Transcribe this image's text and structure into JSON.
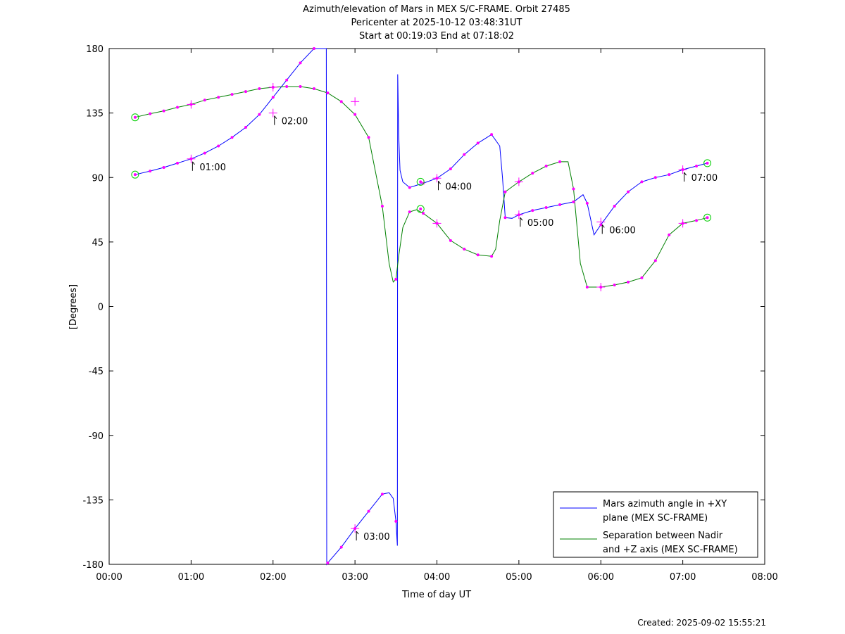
{
  "chart_data": {
    "type": "line",
    "title": [
      "Azimuth/elevation of Mars in MEX S/C-FRAME.  Orbit 27485",
      "Pericenter at 2025-10-12 03:48:31UT",
      "Start at 00:19:03 End at 07:18:02"
    ],
    "xlabel": "Time of day UT",
    "ylabel": "[Degrees]",
    "xlim": [
      0,
      480
    ],
    "ylim": [
      -180,
      180
    ],
    "x_ticks": [
      0,
      60,
      120,
      180,
      240,
      300,
      360,
      420,
      480
    ],
    "x_tick_labels": [
      "00:00",
      "01:00",
      "02:00",
      "03:00",
      "04:00",
      "05:00",
      "06:00",
      "07:00",
      "08:00"
    ],
    "y_ticks": [
      180,
      135,
      90,
      45,
      0,
      -45,
      -90,
      -135,
      -180
    ],
    "y_tick_labels": [
      "180",
      "135",
      "90",
      "45",
      "0",
      "-45",
      "-90",
      "-135",
      "-180"
    ],
    "grid": false,
    "legend_position": "bottom-right",
    "series": [
      {
        "name": "Mars azimuth angle in +XY plane (MEX SC-FRAME)",
        "legend_lines": [
          "Mars azimuth angle in +XY",
          "plane (MEX SC-FRAME)"
        ],
        "color": "#0000ff",
        "x": [
          19,
          30,
          40,
          50,
          60,
          70,
          80,
          90,
          100,
          110,
          120,
          130,
          140,
          150,
          159,
          159.3,
          160,
          170,
          180,
          190,
          200,
          205,
          208,
          210,
          211,
          211.3,
          212,
          213,
          215,
          220,
          225,
          230,
          240,
          250,
          260,
          270,
          280,
          286,
          288,
          290,
          295,
          300,
          310,
          320,
          330,
          340,
          347,
          350,
          355,
          360,
          370,
          380,
          390,
          400,
          410,
          420,
          430,
          438
        ],
        "y": [
          92,
          94.5,
          97,
          100,
          103,
          107,
          112,
          118,
          125,
          134,
          146,
          158,
          170,
          180,
          180,
          -180,
          -179,
          -168,
          -155,
          -143,
          -131,
          -130,
          -134,
          -150,
          -167,
          162,
          120,
          95,
          87,
          83,
          84.5,
          86,
          89.5,
          96,
          106,
          114,
          120,
          112,
          90,
          62,
          61.5,
          64,
          67,
          69,
          71,
          73,
          78,
          72,
          50,
          57,
          70,
          80,
          87,
          90,
          92,
          95.5,
          98,
          100
        ]
      },
      {
        "name": "Separation between Nadir and +Z axis (MEX SC-FRAME)",
        "legend_lines": [
          "Separation between Nadir",
          "and +Z axis (MEX SC-FRAME)"
        ],
        "color": "#008000",
        "x": [
          19,
          30,
          40,
          50,
          60,
          70,
          80,
          90,
          100,
          110,
          120,
          130,
          140,
          150,
          160,
          170,
          180,
          190,
          200,
          205,
          208,
          210,
          212,
          215,
          220,
          225,
          230,
          240,
          250,
          260,
          270,
          280,
          283,
          286,
          290,
          300,
          310,
          320,
          330,
          336,
          340,
          345,
          350,
          360,
          370,
          380,
          390,
          400,
          410,
          420,
          430,
          438
        ],
        "y": [
          132,
          134.5,
          136.5,
          139,
          141,
          144,
          146,
          148,
          150,
          152,
          153,
          153.5,
          153.5,
          152,
          149,
          143,
          134,
          118,
          70,
          30,
          17,
          19,
          35,
          55,
          66,
          67.5,
          65,
          58,
          46,
          40,
          36,
          35,
          40,
          60,
          80,
          87,
          93,
          98,
          101,
          101,
          82,
          30,
          13.5,
          13.5,
          15,
          17,
          20,
          32,
          50,
          58,
          60,
          62
        ]
      }
    ],
    "markers": {
      "dots_color": "#ff00ff",
      "hour_labels": [
        {
          "text": "01:00",
          "x": 60,
          "y": 103
        },
        {
          "text": "02:00",
          "x": 120,
          "y": 135
        },
        {
          "text": "03:00",
          "x": 180,
          "y": -155
        },
        {
          "text": "04:00",
          "x": 240,
          "y": 89.5
        },
        {
          "text": "05:00",
          "x": 300,
          "y": 64
        },
        {
          "text": "06:00",
          "x": 360,
          "y": 59
        },
        {
          "text": "07:00",
          "x": 420,
          "y": 95.5
        }
      ],
      "cross_points": [
        {
          "x": 60,
          "y": 103
        },
        {
          "x": 120,
          "y": 135
        },
        {
          "x": 180,
          "y": -155
        },
        {
          "x": 240,
          "y": 89.5
        },
        {
          "x": 300,
          "y": 64
        },
        {
          "x": 360,
          "y": 59
        },
        {
          "x": 420,
          "y": 95.5
        },
        {
          "x": 60,
          "y": 141
        },
        {
          "x": 120,
          "y": 153
        },
        {
          "x": 180,
          "y": 143
        },
        {
          "x": 240,
          "y": 58
        },
        {
          "x": 300,
          "y": 87
        },
        {
          "x": 360,
          "y": 13.5
        },
        {
          "x": 420,
          "y": 58
        }
      ],
      "circle_points": [
        {
          "x": 19,
          "y": 92
        },
        {
          "x": 19,
          "y": 132
        },
        {
          "x": 228,
          "y": 87
        },
        {
          "x": 228,
          "y": 68
        },
        {
          "x": 438,
          "y": 100
        },
        {
          "x": 438,
          "y": 62
        }
      ]
    }
  },
  "footer": {
    "created": "Created: 2025-09-02 15:55:21"
  }
}
